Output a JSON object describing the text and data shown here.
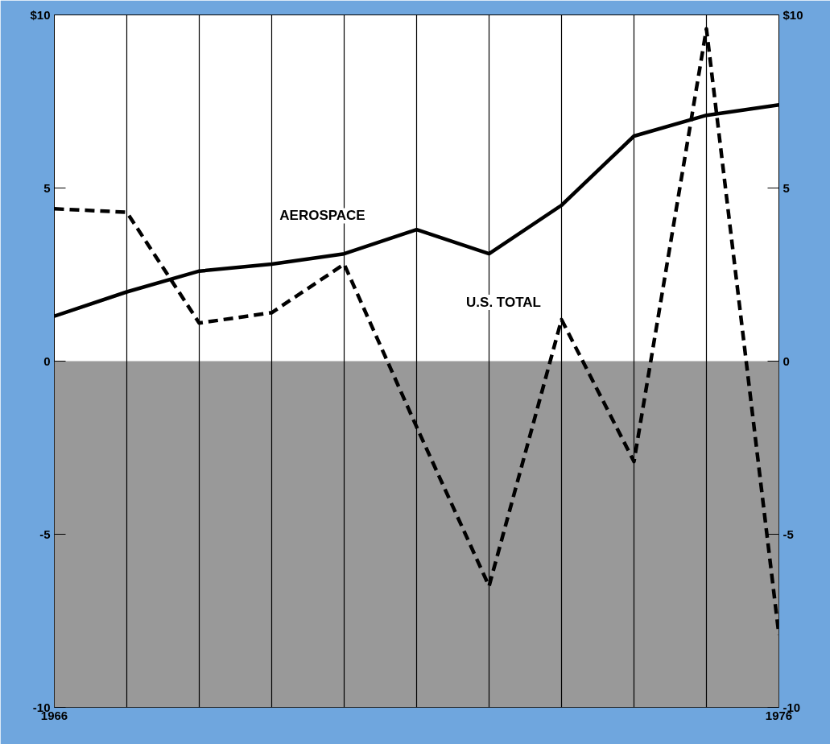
{
  "chart_data": {
    "type": "line",
    "x": [
      1966,
      1967,
      1968,
      1969,
      1970,
      1971,
      1972,
      1973,
      1974,
      1975,
      1976
    ],
    "series": [
      {
        "name": "AEROSPACE",
        "color": "#000000",
        "line_style": "solid",
        "values": [
          1.3,
          2.0,
          2.6,
          2.8,
          3.1,
          3.8,
          3.1,
          4.5,
          6.5,
          7.1,
          7.4
        ]
      },
      {
        "name": "U.S. TOTAL",
        "color": "#000000",
        "line_style": "dashed",
        "values": [
          4.4,
          4.3,
          1.1,
          1.4,
          2.8,
          -1.9,
          -6.5,
          1.2,
          -2.9,
          9.6,
          -7.9
        ]
      }
    ],
    "xlim": [
      1966,
      1976
    ],
    "xticks": [
      1966,
      {
        "value": 1967,
        "label": null
      },
      {
        "value": 1968,
        "label": null
      },
      {
        "value": 1969,
        "label": null
      },
      {
        "value": 1970,
        "label": null
      },
      {
        "value": 1971,
        "label": null
      },
      {
        "value": 1972,
        "label": null
      },
      {
        "value": 1973,
        "label": null
      },
      {
        "value": 1974,
        "label": null
      },
      {
        "value": 1975,
        "label": null
      },
      1976
    ],
    "ylim": [
      -10,
      10
    ],
    "yticks": [
      {
        "value": 10,
        "label": "$10"
      },
      5,
      0,
      -5,
      -10
    ],
    "y2lim": [
      -10,
      10
    ],
    "y2ticks": [
      {
        "value": 10,
        "label": "$10"
      },
      5,
      0,
      -5,
      -10
    ],
    "bands": [
      {
        "axis": "y",
        "from": -10,
        "to": 0,
        "color": "#999999"
      }
    ],
    "grid": "x",
    "marker": "none"
  }
}
